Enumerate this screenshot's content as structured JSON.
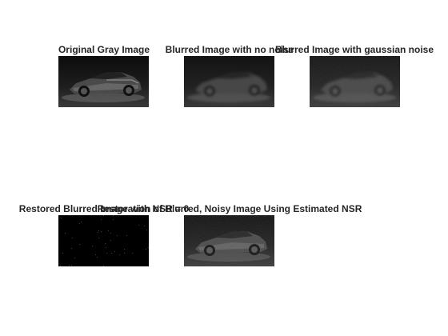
{
  "figure": {
    "background": "#ffffff",
    "title_color": "#262626"
  },
  "panels": [
    {
      "title": "Original Gray Image",
      "kind": "photo-sharp"
    },
    {
      "title": "Blurred Image with no noise",
      "kind": "photo-blurred"
    },
    {
      "title": "Blurred Image with gaussian noise",
      "kind": "photo-blurred-noisy"
    },
    {
      "title": "Restored Blurred Image with NSR = 0",
      "kind": "salt-and-pepper"
    },
    {
      "title": "Restoration of Blurred, Noisy Image Using Estimated NSR",
      "kind": "photo-restored"
    }
  ]
}
